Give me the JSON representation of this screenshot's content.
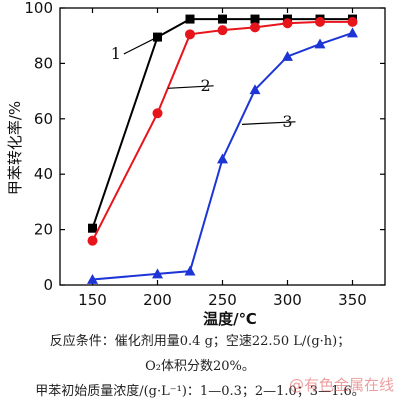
{
  "chart_data": {
    "type": "line",
    "title": "",
    "xlabel": "温度/℃",
    "ylabel": "甲苯转化率/%",
    "xlim": [
      125,
      375
    ],
    "ylim": [
      0,
      100
    ],
    "xticks": [
      150,
      200,
      250,
      300,
      350
    ],
    "yticks": [
      0,
      20,
      40,
      60,
      80,
      100
    ],
    "grid": false,
    "legend": "none",
    "series": [
      {
        "label": "1",
        "color": "#000000",
        "marker": "square",
        "x": [
          150,
          200,
          225,
          250,
          275,
          300,
          325,
          350
        ],
        "y": [
          20.5,
          89.5,
          96,
          96,
          96,
          96,
          96,
          96
        ]
      },
      {
        "label": "2",
        "color": "#e8141c",
        "marker": "circle",
        "x": [
          150,
          200,
          225,
          250,
          275,
          300,
          325,
          350
        ],
        "y": [
          16,
          62,
          90.5,
          92,
          93,
          94.5,
          95,
          95
        ]
      },
      {
        "label": "3",
        "color": "#1d35d6",
        "marker": "triangle",
        "x": [
          150,
          200,
          225,
          250,
          275,
          300,
          325,
          350
        ],
        "y": [
          2,
          4,
          5,
          45.5,
          70.5,
          82.5,
          87,
          91
        ]
      }
    ],
    "annotations": [
      {
        "text": "1",
        "series": 0,
        "at": [
          200,
          89.5
        ],
        "label_at": [
          168,
          84.5
        ]
      },
      {
        "text": "2",
        "series": 1,
        "at": [
          208,
          71
        ],
        "label_at": [
          237,
          73
        ]
      },
      {
        "text": "3",
        "series": 2,
        "at": [
          265,
          58
        ],
        "label_at": [
          300,
          60
        ]
      }
    ]
  },
  "caption": {
    "line1": "反应条件：催化剂用量0.4 g；空速22.50 L/(g·h)；",
    "line2": "O₂体积分数20%。",
    "line3": "甲苯初始质量浓度/(g·L⁻¹)：1—0.3；2—1.0；3—1.6。"
  },
  "watermark": "@有色金属在线"
}
